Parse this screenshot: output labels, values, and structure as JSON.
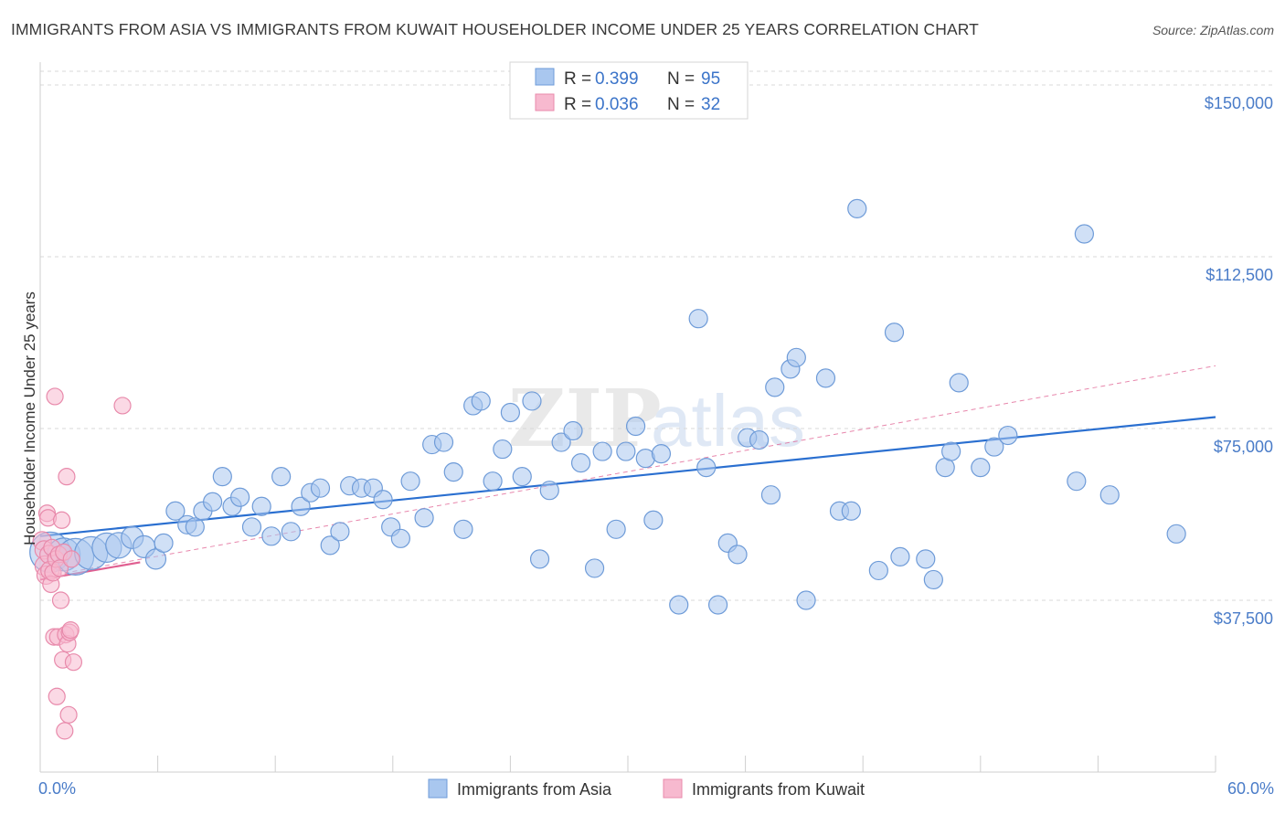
{
  "title": "IMMIGRANTS FROM ASIA VS IMMIGRANTS FROM KUWAIT HOUSEHOLDER INCOME UNDER 25 YEARS CORRELATION CHART",
  "source": "Source: ZipAtlas.com",
  "watermark": {
    "zip": "ZIP",
    "atlas": "atlas"
  },
  "colors": {
    "asia_fill": "#a9c7ef",
    "asia_stroke": "#6e9bd8",
    "asia_line": "#2a6fd0",
    "kuwait_fill": "#f7b9cf",
    "kuwait_stroke": "#e88aab",
    "kuwait_line": "#e05f91",
    "tick_text": "#4a7cc8",
    "grid": "#d8d8d8"
  },
  "legend": {
    "rows": [
      {
        "r_label": "R = ",
        "r_value": "0.399",
        "n_label": "N = ",
        "n_value": "95"
      },
      {
        "r_label": "R = ",
        "r_value": "0.036",
        "n_label": "N = ",
        "n_value": "32"
      }
    ]
  },
  "chart_data": {
    "type": "scatter",
    "title": "IMMIGRANTS FROM ASIA VS IMMIGRANTS FROM KUWAIT HOUSEHOLDER INCOME UNDER 25 YEARS CORRELATION CHART",
    "xlabel": "",
    "ylabel": "Householder Income Under 25 years",
    "xlim": [
      0,
      60
    ],
    "ylim": [
      0,
      153000
    ],
    "x_tick_labels": [
      "0.0%",
      "60.0%"
    ],
    "y_ticks": [
      37500,
      75000,
      112500,
      150000
    ],
    "y_tick_labels": [
      "$37,500",
      "$75,000",
      "$112,500",
      "$150,000"
    ],
    "grid": true,
    "legend_position": "top-center",
    "series": [
      {
        "name": "Immigrants from Asia",
        "color": "#a9c7ef",
        "trend": {
          "x": [
            0,
            60
          ],
          "y": [
            51500,
            77500
          ],
          "style": "solid"
        },
        "extension": {
          "x": [
            0,
            60
          ],
          "y": [
            42500,
            88700
          ],
          "style": "dashed"
        },
        "points": [
          {
            "x": 0.5,
            "y": 48000,
            "s": 22
          },
          {
            "x": 1.2,
            "y": 47500,
            "s": 18
          },
          {
            "x": 1.8,
            "y": 47000,
            "s": 20
          },
          {
            "x": 2.6,
            "y": 47800,
            "s": 18
          },
          {
            "x": 3.4,
            "y": 49000,
            "s": 16
          },
          {
            "x": 4.0,
            "y": 49500,
            "s": 14
          },
          {
            "x": 4.7,
            "y": 51200,
            "s": 12
          },
          {
            "x": 5.3,
            "y": 49200,
            "s": 12
          },
          {
            "x": 5.9,
            "y": 46500,
            "s": 11
          },
          {
            "x": 6.3,
            "y": 50000,
            "s": 10
          },
          {
            "x": 6.9,
            "y": 57000,
            "s": 10
          },
          {
            "x": 7.5,
            "y": 54000,
            "s": 10
          },
          {
            "x": 7.9,
            "y": 53500,
            "s": 10
          },
          {
            "x": 8.3,
            "y": 57000,
            "s": 10
          },
          {
            "x": 8.8,
            "y": 59000,
            "s": 10
          },
          {
            "x": 9.3,
            "y": 64500,
            "s": 10
          },
          {
            "x": 9.8,
            "y": 58000,
            "s": 10
          },
          {
            "x": 10.2,
            "y": 60000,
            "s": 10
          },
          {
            "x": 10.8,
            "y": 53500,
            "s": 10
          },
          {
            "x": 11.3,
            "y": 58000,
            "s": 10
          },
          {
            "x": 11.8,
            "y": 51500,
            "s": 10
          },
          {
            "x": 12.3,
            "y": 64500,
            "s": 10
          },
          {
            "x": 12.8,
            "y": 52500,
            "s": 10
          },
          {
            "x": 13.3,
            "y": 58000,
            "s": 10
          },
          {
            "x": 13.8,
            "y": 61000,
            "s": 10
          },
          {
            "x": 14.3,
            "y": 62000,
            "s": 10
          },
          {
            "x": 14.8,
            "y": 49500,
            "s": 10
          },
          {
            "x": 15.3,
            "y": 52500,
            "s": 10
          },
          {
            "x": 15.8,
            "y": 62500,
            "s": 10
          },
          {
            "x": 16.4,
            "y": 62000,
            "s": 10
          },
          {
            "x": 17.0,
            "y": 62000,
            "s": 10
          },
          {
            "x": 17.5,
            "y": 59500,
            "s": 10
          },
          {
            "x": 17.9,
            "y": 53500,
            "s": 10
          },
          {
            "x": 18.4,
            "y": 51000,
            "s": 10
          },
          {
            "x": 18.9,
            "y": 63500,
            "s": 10
          },
          {
            "x": 19.6,
            "y": 55500,
            "s": 10
          },
          {
            "x": 20.0,
            "y": 71500,
            "s": 10
          },
          {
            "x": 20.6,
            "y": 72000,
            "s": 10
          },
          {
            "x": 21.1,
            "y": 65500,
            "s": 10
          },
          {
            "x": 21.6,
            "y": 53000,
            "s": 10
          },
          {
            "x": 22.1,
            "y": 80000,
            "s": 10
          },
          {
            "x": 22.5,
            "y": 81000,
            "s": 10
          },
          {
            "x": 23.1,
            "y": 63500,
            "s": 10
          },
          {
            "x": 23.6,
            "y": 70500,
            "s": 10
          },
          {
            "x": 24.0,
            "y": 78500,
            "s": 10
          },
          {
            "x": 24.6,
            "y": 64500,
            "s": 10
          },
          {
            "x": 25.1,
            "y": 81000,
            "s": 10
          },
          {
            "x": 25.5,
            "y": 46500,
            "s": 10
          },
          {
            "x": 26.0,
            "y": 61500,
            "s": 10
          },
          {
            "x": 26.6,
            "y": 72000,
            "s": 10
          },
          {
            "x": 27.2,
            "y": 74500,
            "s": 10
          },
          {
            "x": 27.6,
            "y": 67500,
            "s": 10
          },
          {
            "x": 28.3,
            "y": 44500,
            "s": 10
          },
          {
            "x": 28.7,
            "y": 70000,
            "s": 10
          },
          {
            "x": 29.4,
            "y": 53000,
            "s": 10
          },
          {
            "x": 29.9,
            "y": 70000,
            "s": 10
          },
          {
            "x": 30.4,
            "y": 75500,
            "s": 10
          },
          {
            "x": 30.9,
            "y": 68500,
            "s": 10
          },
          {
            "x": 31.3,
            "y": 55000,
            "s": 10
          },
          {
            "x": 31.7,
            "y": 69500,
            "s": 10
          },
          {
            "x": 32.6,
            "y": 36500,
            "s": 10
          },
          {
            "x": 33.6,
            "y": 99000,
            "s": 10
          },
          {
            "x": 34.0,
            "y": 66500,
            "s": 10
          },
          {
            "x": 34.6,
            "y": 36500,
            "s": 10
          },
          {
            "x": 35.1,
            "y": 50000,
            "s": 10
          },
          {
            "x": 35.6,
            "y": 47500,
            "s": 10
          },
          {
            "x": 36.1,
            "y": 73000,
            "s": 10
          },
          {
            "x": 36.7,
            "y": 72500,
            "s": 10
          },
          {
            "x": 37.3,
            "y": 60500,
            "s": 10
          },
          {
            "x": 37.5,
            "y": 84000,
            "s": 10
          },
          {
            "x": 38.3,
            "y": 88000,
            "s": 10
          },
          {
            "x": 38.6,
            "y": 90500,
            "s": 10
          },
          {
            "x": 39.1,
            "y": 37500,
            "s": 10
          },
          {
            "x": 40.1,
            "y": 86000,
            "s": 10
          },
          {
            "x": 40.8,
            "y": 57000,
            "s": 10
          },
          {
            "x": 41.4,
            "y": 57000,
            "s": 10
          },
          {
            "x": 41.7,
            "y": 123000,
            "s": 10
          },
          {
            "x": 42.8,
            "y": 44000,
            "s": 10
          },
          {
            "x": 43.6,
            "y": 96000,
            "s": 10
          },
          {
            "x": 43.9,
            "y": 47000,
            "s": 10
          },
          {
            "x": 45.2,
            "y": 46500,
            "s": 10
          },
          {
            "x": 45.6,
            "y": 42000,
            "s": 10
          },
          {
            "x": 46.2,
            "y": 66500,
            "s": 10
          },
          {
            "x": 46.5,
            "y": 70000,
            "s": 10
          },
          {
            "x": 46.9,
            "y": 85000,
            "s": 10
          },
          {
            "x": 48.0,
            "y": 66500,
            "s": 10
          },
          {
            "x": 48.7,
            "y": 71000,
            "s": 10
          },
          {
            "x": 49.4,
            "y": 73500,
            "s": 10
          },
          {
            "x": 52.9,
            "y": 63500,
            "s": 10
          },
          {
            "x": 53.3,
            "y": 117500,
            "s": 10
          },
          {
            "x": 54.6,
            "y": 60500,
            "s": 10
          },
          {
            "x": 58.0,
            "y": 52000,
            "s": 10
          }
        ]
      },
      {
        "name": "Immigrants from Kuwait",
        "color": "#f7b9cf",
        "trend": {
          "x": [
            0,
            5.1
          ],
          "y": [
            42000,
            45800
          ],
          "style": "solid"
        },
        "points": [
          {
            "x": 0.1,
            "y": 50500,
            "s": 10
          },
          {
            "x": 0.2,
            "y": 48500,
            "s": 10
          },
          {
            "x": 0.25,
            "y": 45000,
            "s": 11
          },
          {
            "x": 0.3,
            "y": 43000,
            "s": 10
          },
          {
            "x": 0.35,
            "y": 56500,
            "s": 9
          },
          {
            "x": 0.4,
            "y": 55500,
            "s": 9
          },
          {
            "x": 0.45,
            "y": 47500,
            "s": 10
          },
          {
            "x": 0.5,
            "y": 44000,
            "s": 10
          },
          {
            "x": 0.55,
            "y": 41000,
            "s": 9
          },
          {
            "x": 0.6,
            "y": 49000,
            "s": 9
          },
          {
            "x": 0.65,
            "y": 43500,
            "s": 9
          },
          {
            "x": 0.7,
            "y": 29500,
            "s": 9
          },
          {
            "x": 0.75,
            "y": 82000,
            "s": 9
          },
          {
            "x": 0.8,
            "y": 46500,
            "s": 9
          },
          {
            "x": 0.85,
            "y": 16500,
            "s": 9
          },
          {
            "x": 0.9,
            "y": 29500,
            "s": 9
          },
          {
            "x": 0.95,
            "y": 47500,
            "s": 9
          },
          {
            "x": 1.0,
            "y": 44500,
            "s": 9
          },
          {
            "x": 1.05,
            "y": 37500,
            "s": 9
          },
          {
            "x": 1.1,
            "y": 55000,
            "s": 9
          },
          {
            "x": 1.15,
            "y": 24500,
            "s": 9
          },
          {
            "x": 1.2,
            "y": 48000,
            "s": 9
          },
          {
            "x": 1.25,
            "y": 9000,
            "s": 9
          },
          {
            "x": 1.3,
            "y": 30000,
            "s": 9
          },
          {
            "x": 1.35,
            "y": 64500,
            "s": 9
          },
          {
            "x": 1.4,
            "y": 28000,
            "s": 9
          },
          {
            "x": 1.45,
            "y": 12500,
            "s": 9
          },
          {
            "x": 1.5,
            "y": 30500,
            "s": 9
          },
          {
            "x": 1.55,
            "y": 31000,
            "s": 9
          },
          {
            "x": 1.6,
            "y": 46500,
            "s": 9
          },
          {
            "x": 1.7,
            "y": 24000,
            "s": 9
          },
          {
            "x": 4.2,
            "y": 80000,
            "s": 9
          }
        ]
      }
    ]
  },
  "bottom_legend": [
    "Immigrants from Asia",
    "Immigrants from Kuwait"
  ]
}
